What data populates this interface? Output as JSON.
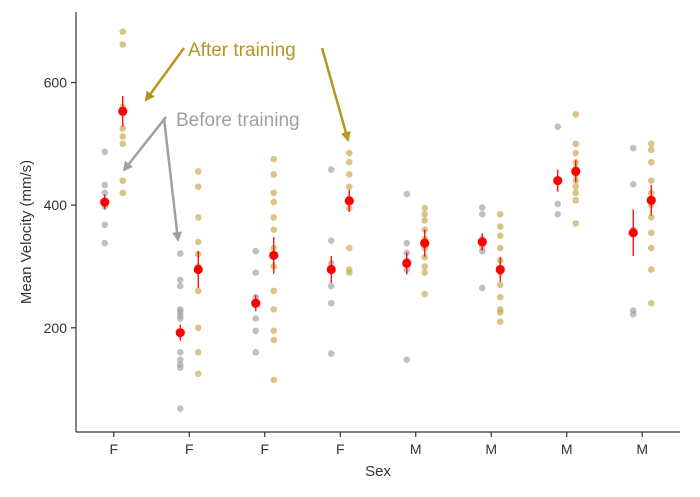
{
  "chart_data": {
    "type": "scatter",
    "xlabel": "Sex",
    "ylabel": "Mean Velocity (mm/s)",
    "categories": [
      "F",
      "F",
      "F",
      "F",
      "M",
      "M",
      "M",
      "M"
    ],
    "yticks": [
      200,
      400,
      600
    ],
    "ylim": [
      30,
      715
    ],
    "grid": false,
    "colors": {
      "before": "#9e9e9e",
      "after": "#c9a44a",
      "mean": "#ff0000",
      "annotation_after": "#b8961e",
      "annotation_before": "#a0a0a0"
    },
    "series": [
      {
        "values_by_group": [
          [
            487,
            433,
            420,
            398,
            368,
            338
          ],
          [
            321,
            278,
            268,
            230,
            226,
            220,
            215,
            160,
            148,
            140,
            135,
            68
          ],
          [
            325,
            290,
            250,
            240,
            215,
            195,
            160
          ],
          [
            458,
            342,
            305,
            268,
            240,
            158
          ],
          [
            418,
            338,
            322,
            310,
            295,
            148
          ],
          [
            396,
            385,
            345,
            332,
            325,
            265
          ],
          [
            528,
            440,
            402,
            385
          ],
          [
            493,
            434,
            360,
            228,
            222
          ]
        ],
        "means": [
          405,
          192,
          240,
          295,
          305,
          340,
          440,
          355
        ],
        "errors": [
          12,
          13,
          13,
          22,
          18,
          14,
          18,
          38
        ]
      },
      {
        "values_by_group": [
          [
            683,
            662,
            560,
            525,
            512,
            500,
            440,
            420
          ],
          [
            455,
            430,
            380,
            340,
            320,
            300,
            260,
            200,
            160,
            125
          ],
          [
            475,
            450,
            420,
            405,
            380,
            360,
            330,
            300,
            260,
            230,
            195,
            180,
            115
          ],
          [
            485,
            470,
            450,
            430,
            410,
            395,
            330,
            295,
            290
          ],
          [
            395,
            385,
            375,
            360,
            345,
            330,
            315,
            300,
            290,
            255
          ],
          [
            385,
            365,
            350,
            330,
            310,
            290,
            270,
            250,
            230,
            225,
            210
          ],
          [
            548,
            500,
            485,
            470,
            460,
            450,
            440,
            430,
            420,
            408,
            370
          ],
          [
            500,
            490,
            470,
            440,
            420,
            400,
            380,
            355,
            330,
            295,
            240
          ]
        ],
        "means": [
          553,
          295,
          318,
          407,
          338,
          295,
          455,
          408
        ],
        "errors": [
          25,
          30,
          30,
          18,
          22,
          20,
          18,
          25
        ]
      }
    ],
    "annotations": [
      {
        "text": "After training",
        "color_key": "annotation_after"
      },
      {
        "text": "Before training",
        "color_key": "annotation_before"
      }
    ]
  }
}
